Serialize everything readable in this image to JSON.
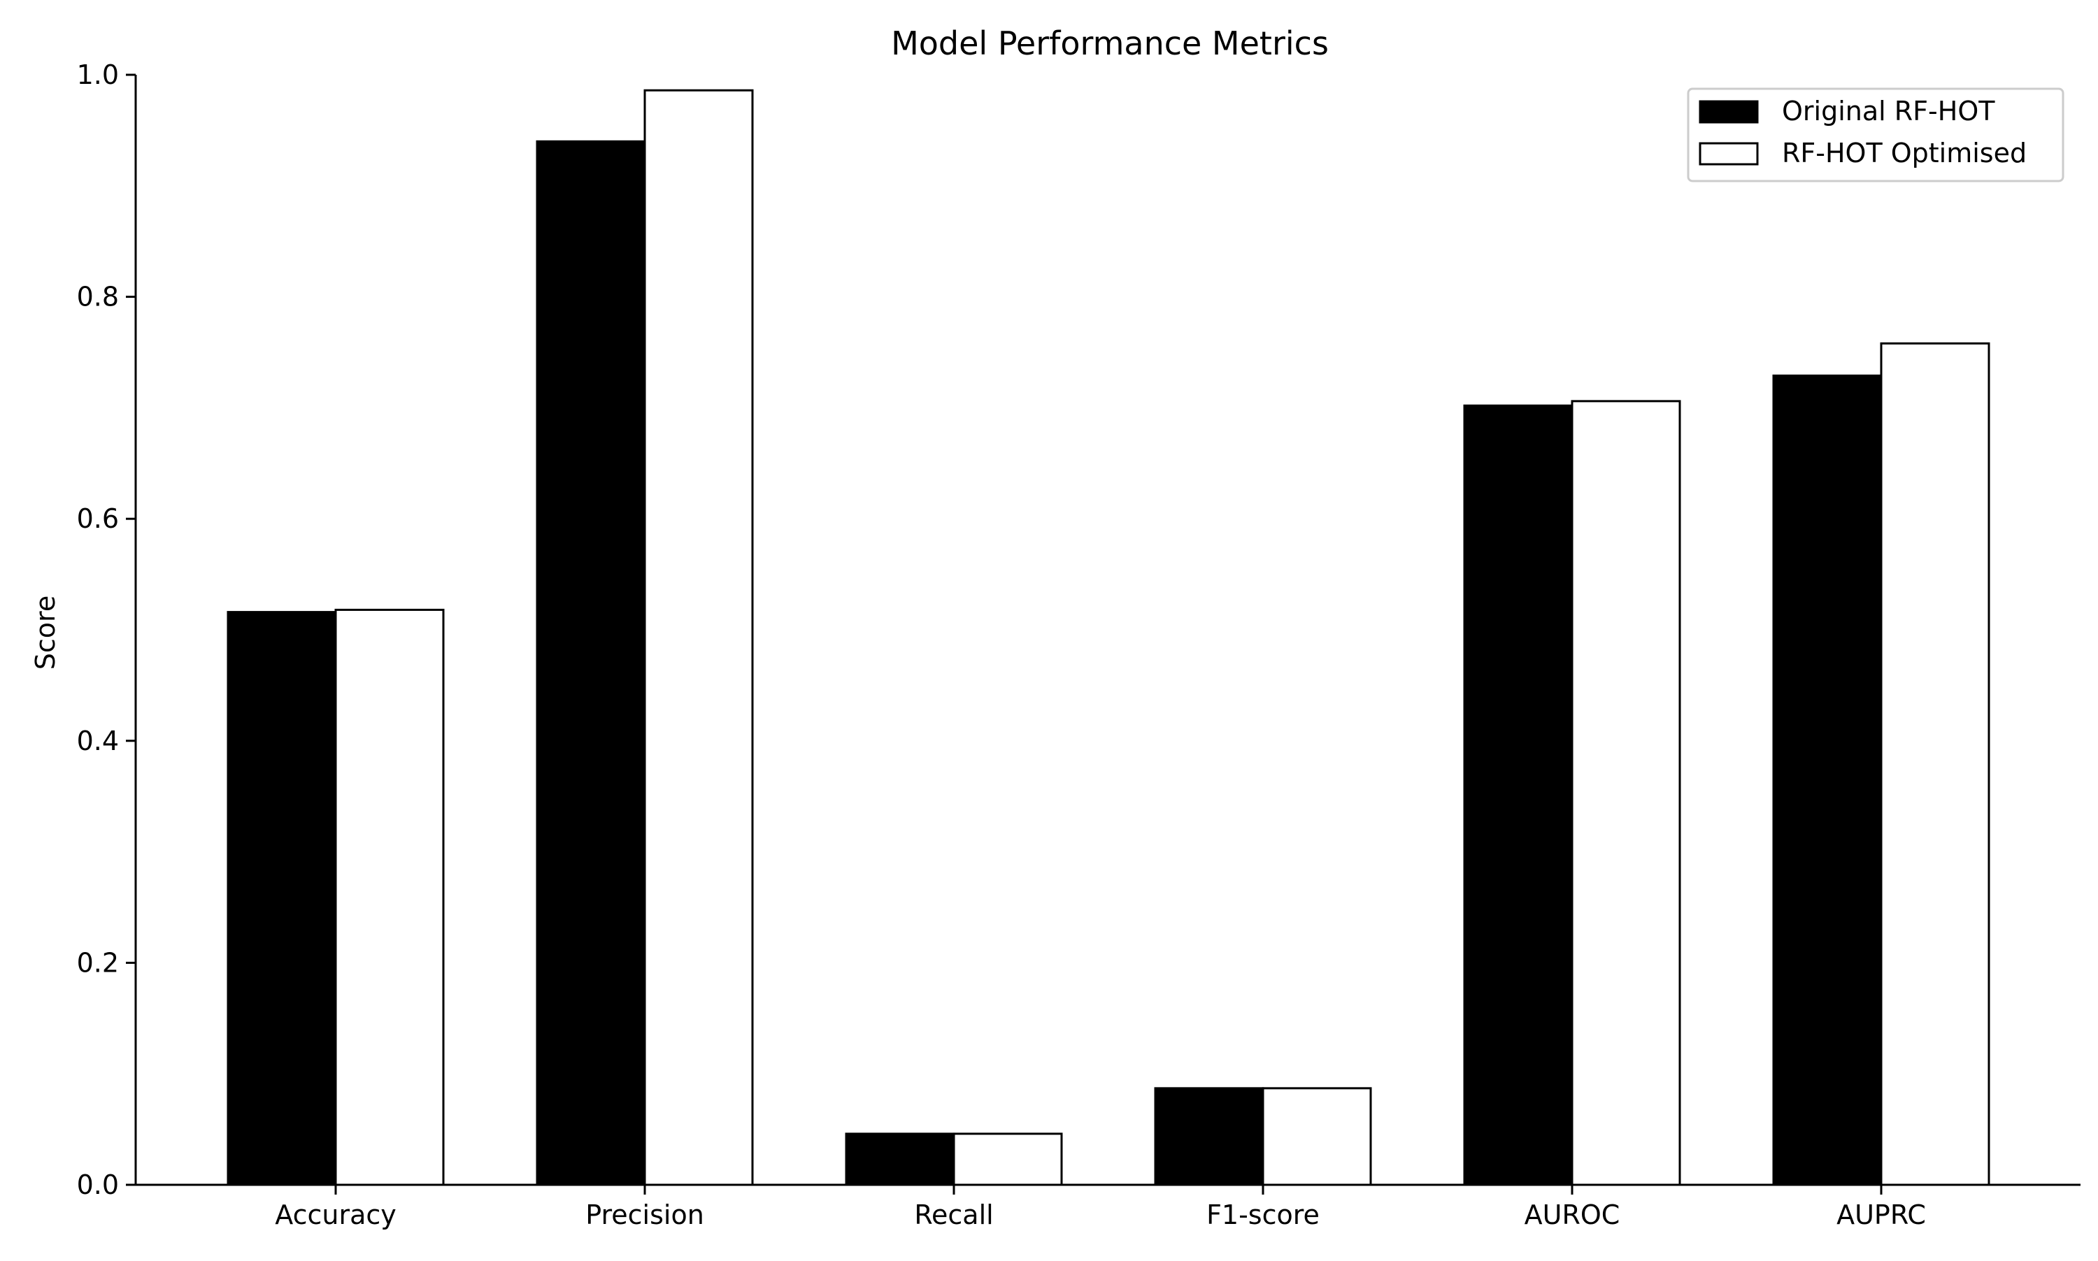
{
  "chart_data": {
    "type": "bar",
    "title": "Model Performance Metrics",
    "xlabel": "",
    "ylabel": "Score",
    "ylim": [
      0,
      1.0
    ],
    "yticks": [
      "0.0",
      "0.2",
      "0.4",
      "0.6",
      "0.8",
      "1.0"
    ],
    "grid": false,
    "legend_position": "top-right",
    "categories": [
      "Accuracy",
      "Precision",
      "Recall",
      "F1-score",
      "AUROC",
      "AUPRC"
    ],
    "series": [
      {
        "name": "Original RF-HOT",
        "fill": "#000000",
        "values": [
          0.516,
          0.94,
          0.046,
          0.087,
          0.702,
          0.729
        ]
      },
      {
        "name": "RF-HOT Optimised",
        "fill": "#ffffff",
        "values": [
          0.518,
          0.986,
          0.046,
          0.087,
          0.706,
          0.758
        ]
      }
    ]
  }
}
